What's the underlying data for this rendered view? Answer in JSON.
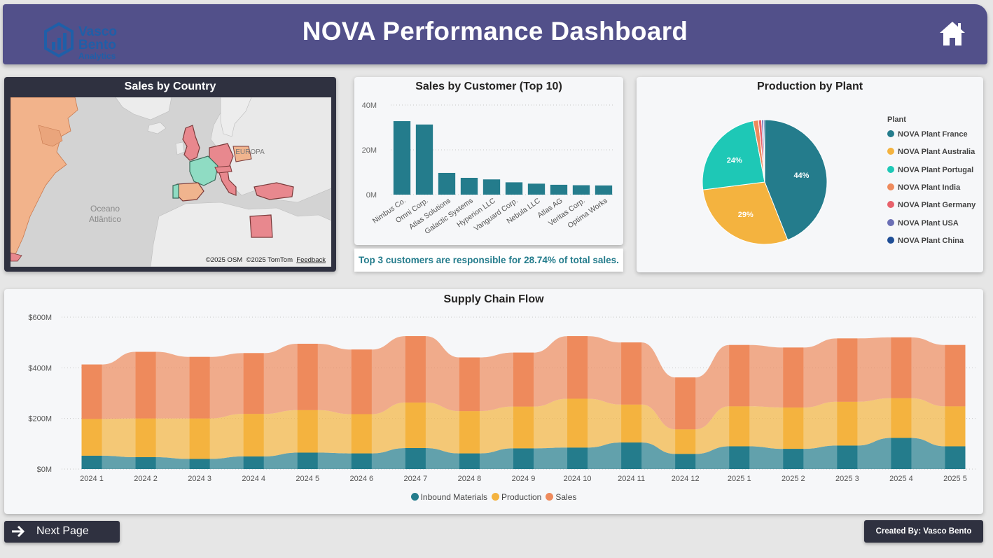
{
  "header": {
    "title": "NOVA Performance Dashboard",
    "logo": {
      "line1": "Vasco",
      "line2": "Bento",
      "line3": "Analytics"
    },
    "home_icon": "home-icon"
  },
  "map": {
    "title": "Sales by Country",
    "ocean_label_1": "Oceano",
    "ocean_label_2": "Atlântico",
    "region_label": "EUROPA",
    "credit_osm": "©2025 OSM",
    "credit_tomtom": "©2025 TomTom",
    "credit_feedback": "Feedback"
  },
  "customers": {
    "title": "Sales by Customer (Top 10)",
    "insight": "Top 3 customers are responsible for 28.74% of total sales."
  },
  "plants": {
    "title": "Production by Plant",
    "legend_title": "Plant"
  },
  "flow": {
    "title": "Supply Chain Flow"
  },
  "footer": {
    "next_label": "Next Page",
    "credit": "Created By: Vasco Bento"
  },
  "colors": {
    "teal": "#247c8c",
    "yellow": "#f4b33f",
    "orange": "#ee8a5c",
    "header": "#52508a",
    "dark": "#2f3140"
  },
  "chart_data": [
    {
      "id": "customers",
      "type": "bar",
      "title": "Sales by Customer (Top 10)",
      "categories": [
        "Nimbus Co.",
        "Omni Corp.",
        "Atlas Solutions",
        "Galactic Systems",
        "Hyperion LLC",
        "Vanguard Corp.",
        "Nebula LLC",
        "Atlas AG",
        "Veritas Corp.",
        "Optima Works"
      ],
      "values": [
        32.8,
        31.3,
        9.7,
        7.5,
        6.8,
        5.5,
        4.9,
        4.4,
        4.2,
        4.1
      ],
      "yticks": [
        "0M",
        "20M",
        "40M"
      ],
      "ylim": [
        0,
        40
      ],
      "color": "#247c8c",
      "grid": true
    },
    {
      "id": "plants",
      "type": "pie",
      "title": "Production by Plant",
      "legend_title": "Plant",
      "legend_position": "right",
      "slices": [
        {
          "name": "NOVA Plant France",
          "value": 44,
          "label": "44%",
          "color": "#247c8c"
        },
        {
          "name": "NOVA Plant Australia",
          "value": 29,
          "label": "29%",
          "color": "#f4b33f"
        },
        {
          "name": "NOVA Plant Portugal",
          "value": 24,
          "label": "24%",
          "color": "#1ec8b6"
        },
        {
          "name": "NOVA Plant India",
          "value": 1.4,
          "label": "",
          "color": "#ee8a5c"
        },
        {
          "name": "NOVA Plant Germany",
          "value": 0.8,
          "label": "",
          "color": "#e8616b"
        },
        {
          "name": "NOVA Plant USA",
          "value": 0.5,
          "label": "",
          "color": "#6b6fb5"
        },
        {
          "name": "NOVA Plant China",
          "value": 0.3,
          "label": "",
          "color": "#1f4e96"
        }
      ]
    },
    {
      "id": "flow",
      "type": "bar",
      "stacked": true,
      "title": "Supply Chain Flow",
      "categories": [
        "2024 1",
        "2024 2",
        "2024 3",
        "2024 4",
        "2024 5",
        "2024 6",
        "2024 7",
        "2024 8",
        "2024 9",
        "2024 10",
        "2024 11",
        "2024 12",
        "2025 1",
        "2025 2",
        "2025 3",
        "2025 4",
        "2025 5"
      ],
      "yticks": [
        "$0M",
        "$200M",
        "$400M",
        "$600M"
      ],
      "ylim": [
        0,
        600
      ],
      "legend_position": "bottom",
      "grid": true,
      "series": [
        {
          "name": "Inbound Materials",
          "color": "#247c8c",
          "values": [
            53,
            47,
            40,
            50,
            65,
            62,
            83,
            62,
            82,
            85,
            105,
            60,
            90,
            80,
            93,
            123,
            90
          ]
        },
        {
          "name": "Production",
          "color": "#f4b33f",
          "values": [
            145,
            153,
            160,
            168,
            168,
            155,
            180,
            167,
            165,
            193,
            150,
            97,
            158,
            163,
            173,
            157,
            158
          ]
        },
        {
          "name": "Sales",
          "color": "#ee8a5c",
          "values": [
            215,
            263,
            243,
            240,
            262,
            255,
            262,
            212,
            213,
            247,
            245,
            205,
            242,
            237,
            250,
            240,
            242
          ]
        }
      ]
    }
  ]
}
